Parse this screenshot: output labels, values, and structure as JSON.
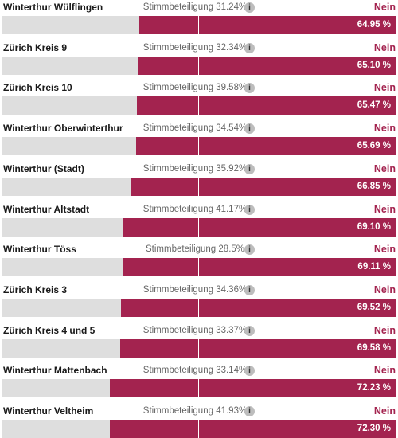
{
  "result_label": "Nein",
  "rows": [
    {
      "name": "Winterthur Wülflingen",
      "turnout": "Stimmbeteiligung 31.24%",
      "nein": {
        "value": 64.95,
        "label": "64.95 %"
      }
    },
    {
      "name": "Zürich Kreis 9",
      "turnout": "Stimmbeteiligung 32.34%",
      "nein": {
        "value": 65.1,
        "label": "65.10 %"
      }
    },
    {
      "name": "Zürich Kreis 10",
      "turnout": "Stimmbeteiligung 39.58%",
      "nein": {
        "value": 65.47,
        "label": "65.47 %"
      }
    },
    {
      "name": "Winterthur Oberwinterthur",
      "turnout": "Stimmbeteiligung 34.54%",
      "nein": {
        "value": 65.69,
        "label": "65.69 %"
      }
    },
    {
      "name": "Winterthur (Stadt)",
      "turnout": "Stimmbeteiligung 35.92%",
      "nein": {
        "value": 66.85,
        "label": "66.85 %"
      }
    },
    {
      "name": "Winterthur Altstadt",
      "turnout": "Stimmbeteiligung 41.17%",
      "nein": {
        "value": 69.1,
        "label": "69.10 %"
      }
    },
    {
      "name": "Winterthur Töss",
      "turnout": "Stimmbeteiligung 28.5%",
      "nein": {
        "value": 69.11,
        "label": "69.11 %"
      }
    },
    {
      "name": "Zürich Kreis 3",
      "turnout": "Stimmbeteiligung 34.36%",
      "nein": {
        "value": 69.52,
        "label": "69.52 %"
      }
    },
    {
      "name": "Zürich Kreis 4 und 5",
      "turnout": "Stimmbeteiligung 33.37%",
      "nein": {
        "value": 69.58,
        "label": "69.58 %"
      }
    },
    {
      "name": "Winterthur Mattenbach",
      "turnout": "Stimmbeteiligung 33.14%",
      "nein": {
        "value": 72.23,
        "label": "72.23 %"
      }
    },
    {
      "name": "Winterthur Veltheim",
      "turnout": "Stimmbeteiligung 41.93%",
      "nein": {
        "value": 72.3,
        "label": "72.30 %"
      }
    }
  ]
}
